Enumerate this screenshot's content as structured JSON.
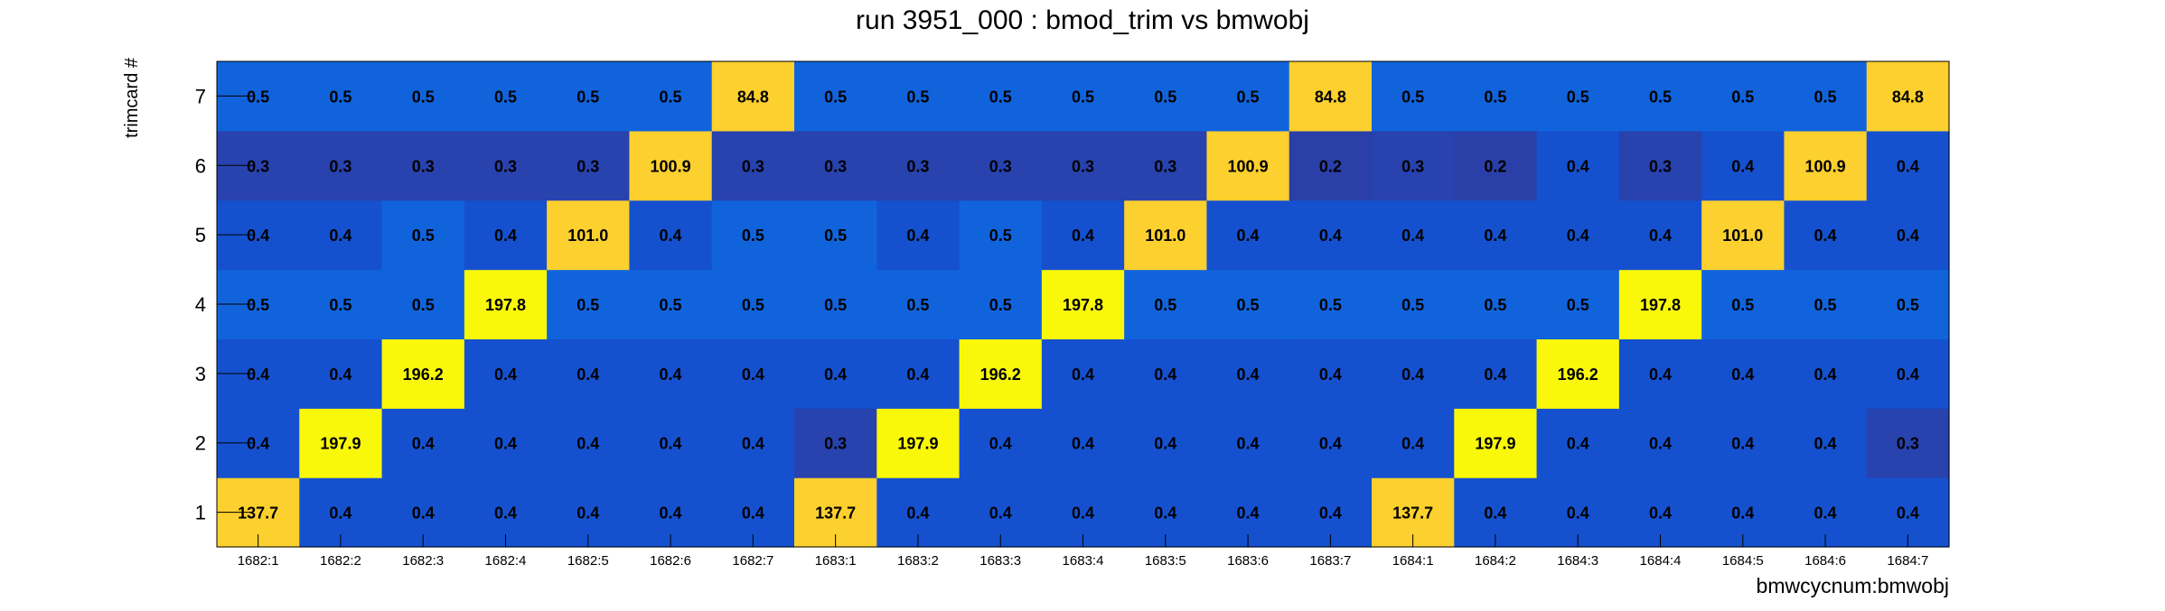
{
  "chart_data": {
    "type": "heatmap",
    "title": "run 3951_000 : bmod_trim vs bmwobj",
    "xlabel": "bmwcycnum:bmwobj",
    "ylabel": "trimcard #",
    "categories": [
      "1682:1",
      "1682:2",
      "1682:3",
      "1682:4",
      "1682:5",
      "1682:6",
      "1682:7",
      "1683:1",
      "1683:2",
      "1683:3",
      "1683:4",
      "1683:5",
      "1683:6",
      "1683:7",
      "1684:1",
      "1684:2",
      "1684:3",
      "1684:4",
      "1684:5",
      "1684:6",
      "1684:7"
    ],
    "y_categories": [
      "1",
      "2",
      "3",
      "4",
      "5",
      "6",
      "7"
    ],
    "values": [
      [
        "137.7",
        "0.4",
        "0.4",
        "0.4",
        "0.4",
        "0.4",
        "0.4",
        "137.7",
        "0.4",
        "0.4",
        "0.4",
        "0.4",
        "0.4",
        "0.4",
        "137.7",
        "0.4",
        "0.4",
        "0.4",
        "0.4",
        "0.4",
        "0.4"
      ],
      [
        "0.4",
        "197.9",
        "0.4",
        "0.4",
        "0.4",
        "0.4",
        "0.4",
        "0.3",
        "197.9",
        "0.4",
        "0.4",
        "0.4",
        "0.4",
        "0.4",
        "0.4",
        "197.9",
        "0.4",
        "0.4",
        "0.4",
        "0.4",
        "0.3"
      ],
      [
        "0.4",
        "0.4",
        "196.2",
        "0.4",
        "0.4",
        "0.4",
        "0.4",
        "0.4",
        "0.4",
        "196.2",
        "0.4",
        "0.4",
        "0.4",
        "0.4",
        "0.4",
        "0.4",
        "196.2",
        "0.4",
        "0.4",
        "0.4",
        "0.4"
      ],
      [
        "0.5",
        "0.5",
        "0.5",
        "197.8",
        "0.5",
        "0.5",
        "0.5",
        "0.5",
        "0.5",
        "0.5",
        "197.8",
        "0.5",
        "0.5",
        "0.5",
        "0.5",
        "0.5",
        "0.5",
        "197.8",
        "0.5",
        "0.5",
        "0.5"
      ],
      [
        "0.4",
        "0.4",
        "0.5",
        "0.4",
        "101.0",
        "0.4",
        "0.5",
        "0.5",
        "0.4",
        "0.5",
        "0.4",
        "101.0",
        "0.4",
        "0.4",
        "0.4",
        "0.4",
        "0.4",
        "0.4",
        "101.0",
        "0.4",
        "0.4"
      ],
      [
        "0.3",
        "0.3",
        "0.3",
        "0.3",
        "0.3",
        "100.9",
        "0.3",
        "0.3",
        "0.3",
        "0.3",
        "0.3",
        "0.3",
        "100.9",
        "0.2",
        "0.3",
        "0.2",
        "0.4",
        "0.3",
        "0.4",
        "100.9",
        "0.4"
      ],
      [
        "0.5",
        "0.5",
        "0.5",
        "0.5",
        "0.5",
        "0.5",
        "84.8",
        "0.5",
        "0.5",
        "0.5",
        "0.5",
        "0.5",
        "0.5",
        "84.8",
        "0.5",
        "0.5",
        "0.5",
        "0.5",
        "0.5",
        "0.5",
        "84.8"
      ]
    ],
    "palette": {
      "high": "#f9f80a",
      "mid_high": "#fcd02e",
      "low_05": "#1163dc",
      "low_04": "#1551cf",
      "low_03": "#2842ae",
      "low_02": "#2a3fa7",
      "text": "#000000",
      "frame": "#000000"
    },
    "grid": false,
    "legend": "none"
  }
}
